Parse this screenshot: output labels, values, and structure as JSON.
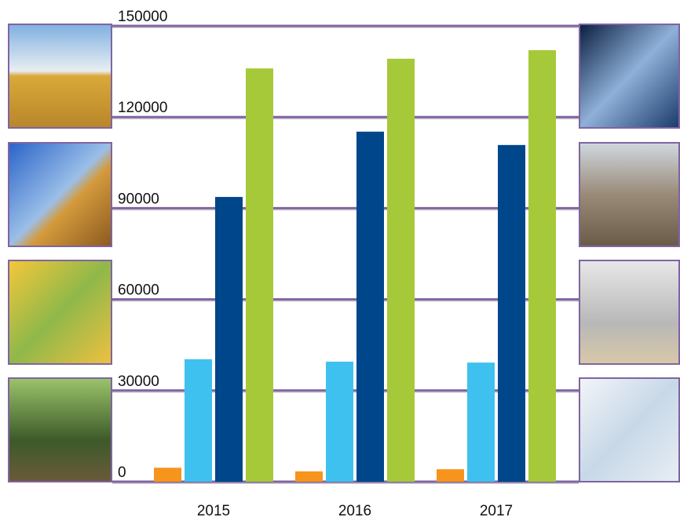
{
  "chart_data": {
    "type": "bar",
    "categories": [
      "2015",
      "2016",
      "2017"
    ],
    "series": [
      {
        "color": "#f7941d",
        "values": [
          4600,
          3400,
          4100
        ]
      },
      {
        "color": "#3fc1ef",
        "values": [
          40300,
          39500,
          39200
        ]
      },
      {
        "color": "#00468b",
        "values": [
          93700,
          115200,
          110800
        ]
      },
      {
        "color": "#a6c939",
        "values": [
          136000,
          139200,
          142000
        ]
      }
    ],
    "ylim": [
      0,
      150000
    ],
    "yticks": [
      0,
      30000,
      60000,
      90000,
      120000,
      150000
    ],
    "grid": true,
    "grid_color": "#8064a2"
  }
}
